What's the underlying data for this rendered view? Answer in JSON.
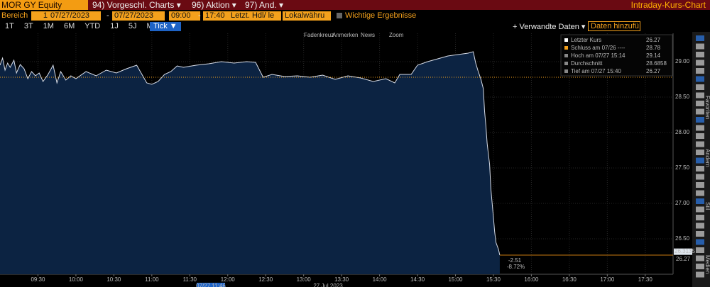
{
  "header": {
    "ticker": "MOR GY Equity",
    "menus": [
      "94) Vorgeschl. Charts ▾",
      "96) Aktion ▾",
      "97) And. ▾"
    ],
    "title": "Intraday-Kurs-Chart"
  },
  "controls": {
    "range_label": "Bereich",
    "range_value": "1",
    "date_from": "07/27/2023",
    "dash1": "-",
    "date_to": "07/27/2023",
    "time_from": "09:00",
    "dash2": "-",
    "time_to": "17:40",
    "price_field": "Letzt. Hdl/ le",
    "currency": "Lokalwähru",
    "events": "Wichtige Ergebnisse"
  },
  "periods": [
    "1T",
    "3T",
    "1M",
    "6M",
    "YTD",
    "1J",
    "5J",
    "Max."
  ],
  "tick_button": "Tick ▼",
  "related": "+ Verwandte Daten ▾",
  "add_data": "Daten hinzufü",
  "chart_tools": [
    "Fadenkreuz",
    "Anmerken",
    "News",
    "Zoom"
  ],
  "side_labels": [
    "Favoriten",
    "Ändern",
    "Stil",
    "Medien"
  ],
  "chart_data": {
    "type": "line",
    "color": "#d8dde8",
    "fill": "#0c2342",
    "grid": true,
    "x": [
      "09:00",
      "09:02",
      "09:04",
      "09:06",
      "09:08",
      "09:11",
      "09:13",
      "09:16",
      "09:19",
      "09:22",
      "09:25",
      "09:28",
      "09:31",
      "09:34",
      "09:38",
      "09:42",
      "09:45",
      "09:48",
      "09:52",
      "09:56",
      "10:00",
      "10:08",
      "10:16",
      "10:24",
      "10:32",
      "10:40",
      "10:48",
      "10:56",
      "11:00",
      "11:05",
      "11:10",
      "11:15",
      "11:20",
      "11:25",
      "11:35",
      "11:45",
      "11:55",
      "12:05",
      "12:15",
      "12:22",
      "12:28",
      "12:35",
      "12:45",
      "12:55",
      "13:05",
      "13:15",
      "13:25",
      "13:35",
      "13:45",
      "13:55",
      "14:05",
      "14:12",
      "14:16",
      "14:25",
      "14:30",
      "14:38",
      "14:46",
      "14:54",
      "15:02",
      "15:10",
      "15:14",
      "15:16",
      "15:18",
      "15:20",
      "15:22",
      "15:23",
      "15:24",
      "15:25",
      "15:26",
      "15:27",
      "15:28",
      "15:29",
      "15:30",
      "15:31",
      "15:32",
      "15:34",
      "15:35"
    ],
    "values": [
      28.95,
      29.05,
      28.88,
      28.98,
      28.92,
      29.02,
      28.84,
      28.96,
      28.9,
      28.76,
      28.86,
      28.8,
      28.84,
      28.72,
      28.82,
      28.95,
      28.7,
      28.86,
      28.74,
      28.8,
      28.76,
      28.86,
      28.8,
      28.88,
      28.84,
      28.9,
      28.95,
      28.7,
      28.68,
      28.72,
      28.82,
      28.86,
      28.94,
      28.92,
      28.95,
      28.97,
      29.0,
      28.98,
      29.0,
      28.99,
      28.78,
      28.82,
      28.79,
      28.8,
      28.78,
      28.81,
      28.75,
      28.8,
      28.77,
      28.72,
      28.76,
      28.7,
      28.82,
      28.82,
      28.95,
      29.0,
      29.04,
      29.08,
      29.1,
      29.12,
      29.14,
      28.98,
      28.86,
      28.76,
      28.62,
      28.3,
      28.1,
      27.85,
      27.7,
      27.55,
      27.2,
      27.0,
      26.8,
      26.6,
      26.45,
      26.35,
      26.27
    ],
    "xlim": [
      "09:00",
      "17:52"
    ],
    "xticks": [
      "09:30",
      "10:00",
      "10:30",
      "11:00",
      "11:30",
      "12:00",
      "12:30",
      "13:00",
      "13:30",
      "14:00",
      "14:30",
      "15:00",
      "15:30",
      "16:00",
      "16:30",
      "17:00",
      "17:30"
    ],
    "ylim": [
      26.0,
      29.4
    ],
    "yticks": [
      {
        "value": 26.5,
        "label": "26.50"
      },
      {
        "value": 27,
        "label": "27.00"
      },
      {
        "value": 27.5,
        "label": "27.50"
      },
      {
        "value": 28,
        "label": "28.00"
      },
      {
        "value": 28.5,
        "label": "28.50"
      },
      {
        "value": 29,
        "label": "29.00"
      }
    ],
    "x_label": "27 Jul 2023",
    "cursor": "07/27 11:46",
    "legend": [
      {
        "name": "Letzter Kurs",
        "value": 26.27
      },
      {
        "name": "Schluss am 07/26 ----",
        "value": 28.78
      },
      {
        "name": "Hoch am 07/27 15:14",
        "value": 29.14
      },
      {
        "name": "Durchschnitt",
        "value": 28.6858
      },
      {
        "name": "Tief am 07/27 15:40",
        "value": 26.27
      }
    ],
    "last_tags": [
      26.3135,
      26.27
    ],
    "annotations": [
      "-2.51",
      "-8.72%"
    ]
  }
}
